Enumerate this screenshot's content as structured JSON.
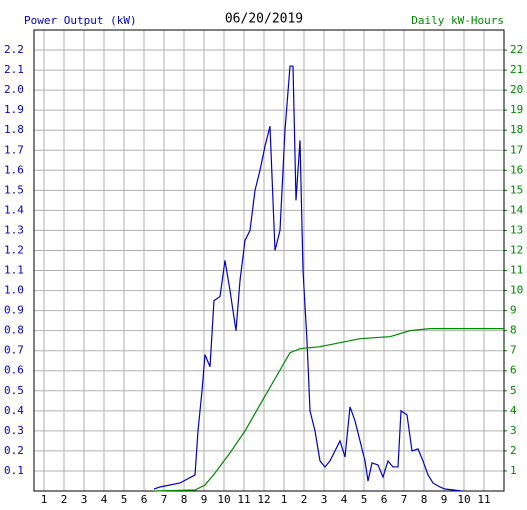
{
  "chart_data": {
    "type": "line",
    "title": "06/20/2019",
    "y_label": "Power Output (kW)",
    "y2_label": "Daily kW-Hours",
    "grid": true,
    "xlim": [
      0.5,
      24
    ],
    "xticks": [
      1,
      2,
      3,
      4,
      5,
      6,
      7,
      8,
      9,
      10,
      11,
      12,
      {
        "value": 13,
        "label": "1"
      },
      {
        "value": 14,
        "label": "2"
      },
      {
        "value": 15,
        "label": "3"
      },
      {
        "value": 16,
        "label": "4"
      },
      {
        "value": 17,
        "label": "5"
      },
      {
        "value": 18,
        "label": "6"
      },
      {
        "value": 19,
        "label": "7"
      },
      {
        "value": 20,
        "label": "8"
      },
      {
        "value": 21,
        "label": "9"
      },
      {
        "value": 22,
        "label": "10"
      },
      {
        "value": 23,
        "label": "11"
      }
    ],
    "ylim": [
      0,
      2.3
    ],
    "yticks": [
      0.1,
      0.2,
      0.3,
      0.4,
      0.5,
      0.6,
      0.7,
      0.8,
      0.9,
      {
        "value": 1.0,
        "label": "1.0"
      },
      1.1,
      1.2,
      1.3,
      1.4,
      1.5,
      1.6,
      1.7,
      1.8,
      1.9,
      {
        "value": 2.0,
        "label": "2.0"
      },
      2.1,
      2.2
    ],
    "y2lim": [
      0,
      23
    ],
    "y2ticks": [
      1,
      2,
      3,
      4,
      5,
      6,
      7,
      8,
      9,
      10,
      11,
      12,
      13,
      14,
      15,
      16,
      17,
      18,
      19,
      20,
      21,
      22
    ],
    "series": [
      {
        "name": "Power Output (kW)",
        "color": "#0000cc",
        "x": [
          6.5,
          6.8,
          7.8,
          8.55,
          8.7,
          8.9,
          9.05,
          9.3,
          9.5,
          9.8,
          10.05,
          10.3,
          10.6,
          10.8,
          11.05,
          11.3,
          11.55,
          11.8,
          12.05,
          12.3,
          12.55,
          12.8,
          13.05,
          13.3,
          13.45,
          13.6,
          13.8,
          13.95,
          14.15,
          14.3,
          14.55,
          14.8,
          15.05,
          15.3,
          15.55,
          15.8,
          16.05,
          16.3,
          16.55,
          16.8,
          17.05,
          17.2,
          17.4,
          17.7,
          17.95,
          18.2,
          18.45,
          18.7,
          18.85,
          19.15,
          19.4,
          19.7,
          19.95,
          20.2,
          20.45,
          20.8,
          21.05,
          21.9
        ],
        "values": [
          0.01,
          0.02,
          0.04,
          0.08,
          0.3,
          0.5,
          0.68,
          0.62,
          0.95,
          0.97,
          1.15,
          1.0,
          0.8,
          1.05,
          1.25,
          1.3,
          1.5,
          1.6,
          1.72,
          1.82,
          1.2,
          1.3,
          1.8,
          2.12,
          2.12,
          1.45,
          1.75,
          1.1,
          0.75,
          0.4,
          0.3,
          0.15,
          0.12,
          0.15,
          0.2,
          0.25,
          0.17,
          0.42,
          0.35,
          0.25,
          0.15,
          0.05,
          0.14,
          0.13,
          0.07,
          0.15,
          0.12,
          0.12,
          0.4,
          0.38,
          0.2,
          0.21,
          0.15,
          0.08,
          0.04,
          0.02,
          0.01,
          0.0
        ]
      },
      {
        "name": "Daily kW-Hours",
        "color": "#008800",
        "axis": "y2",
        "x": [
          6.5,
          8.55,
          9.05,
          9.55,
          10.3,
          11.05,
          11.8,
          12.55,
          13.3,
          13.8,
          14.8,
          15.8,
          16.8,
          18.3,
          19.3,
          20.3,
          24
        ],
        "values": [
          0,
          0.05,
          0.3,
          0.9,
          1.9,
          3.0,
          4.3,
          5.6,
          6.9,
          7.1,
          7.2,
          7.4,
          7.6,
          7.7,
          8.0,
          8.1,
          8.1
        ]
      }
    ]
  }
}
